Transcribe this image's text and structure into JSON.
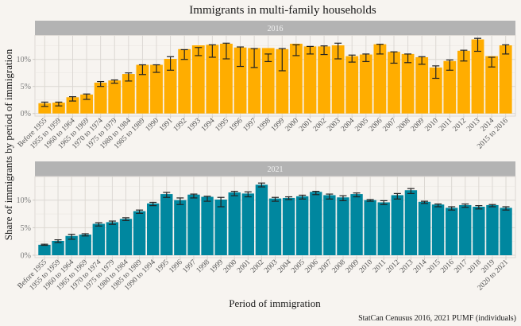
{
  "chart_data": {
    "type": "bar",
    "title": "Immigrants in multi-family households",
    "xlabel": "Period of immigration",
    "ylabel": "Share of immigrants by period of immigration",
    "caption": "StatCan Cenusus 2016, 2021 PUMF (individuals)",
    "grid": true,
    "legend": "none",
    "yticks": [
      "0%",
      "5%",
      "10%"
    ],
    "ytick_values": [
      0,
      5,
      10
    ],
    "panels": [
      {
        "strip": "2016",
        "color": "#ffad00",
        "ylim": [
          0,
          14
        ],
        "categories": [
          "Before 1955",
          "1955 to 1959",
          "1960 to 1964",
          "1965 to 1969",
          "1970 to 1974",
          "1975 to 1979",
          "1980 to 1984",
          "1985 to 1989",
          "1990",
          "1991",
          "1992",
          "1993",
          "1994",
          "1995",
          "1996",
          "1997",
          "1998",
          "1999",
          "2000",
          "2001",
          "2002",
          "2003",
          "2004",
          "2005",
          "2006",
          "2007",
          "2008",
          "2009",
          "2010",
          "2011",
          "2012",
          "2013",
          "2014",
          "2015 to 2016"
        ],
        "values": [
          1.9,
          2.0,
          3.0,
          3.5,
          5.7,
          6.1,
          7.3,
          9.0,
          9.0,
          10.1,
          11.9,
          12.6,
          12.7,
          12.9,
          12.2,
          12.1,
          12.1,
          11.9,
          12.9,
          12.4,
          12.4,
          12.6,
          10.6,
          10.9,
          12.8,
          11.4,
          11.0,
          10.4,
          8.5,
          9.7,
          11.6,
          13.7,
          10.6,
          12.6
        ],
        "err_low": [
          1.3,
          1.4,
          2.3,
          2.6,
          5.0,
          5.6,
          6.0,
          7.2,
          7.6,
          8.0,
          10.0,
          10.7,
          10.4,
          10.1,
          8.7,
          8.5,
          9.6,
          7.9,
          10.7,
          11.0,
          10.9,
          10.1,
          9.5,
          9.6,
          11.0,
          9.3,
          9.4,
          9.1,
          6.5,
          8.0,
          9.7,
          11.5,
          8.6,
          11.0
        ],
        "err_high": [
          2.1,
          2.1,
          3.1,
          3.6,
          5.9,
          6.2,
          7.5,
          9.0,
          9.0,
          10.5,
          11.8,
          12.2,
          12.7,
          13.0,
          12.3,
          12.0,
          11.0,
          12.0,
          12.7,
          12.4,
          12.5,
          13.0,
          10.8,
          11.0,
          12.8,
          11.4,
          11.0,
          10.5,
          8.8,
          9.9,
          11.7,
          13.9,
          10.4,
          12.7
        ]
      },
      {
        "strip": "2021",
        "color": "#00879f",
        "ylim": [
          0,
          13.6
        ],
        "categories": [
          "Before 1955",
          "1955 to 1959",
          "1960 to 1964",
          "1965 to 1969",
          "1970 to 1974",
          "1975 to 1979",
          "1980 to 1984",
          "1985 to 1989",
          "1990 to 1994",
          "1995",
          "1996",
          "1997",
          "1998",
          "1999",
          "2000",
          "2001",
          "2002",
          "2003",
          "2004",
          "2005",
          "2006",
          "2007",
          "2008",
          "2009",
          "2010",
          "2011",
          "2012",
          "2013",
          "2014",
          "2015",
          "2016",
          "2017",
          "2018",
          "2019",
          "2020 to 2021"
        ],
        "values": [
          1.9,
          2.6,
          3.5,
          3.75,
          5.7,
          6.0,
          6.6,
          8.0,
          9.4,
          11.1,
          10.0,
          11.0,
          10.6,
          10.1,
          11.4,
          11.2,
          12.8,
          10.3,
          10.4,
          10.7,
          11.5,
          10.9,
          10.5,
          11.1,
          10.0,
          9.6,
          10.9,
          11.8,
          9.7,
          9.2,
          8.6,
          9.1,
          8.8,
          9.1,
          8.6
        ],
        "err_low": [
          1.8,
          2.3,
          2.9,
          3.5,
          5.3,
          5.6,
          6.3,
          7.6,
          9.0,
          10.5,
          9.2,
          10.4,
          9.8,
          8.8,
          10.8,
          10.6,
          12.4,
          9.8,
          10.1,
          10.2,
          11.0,
          10.2,
          9.9,
          10.6,
          9.8,
          9.2,
          10.2,
          11.2,
          9.4,
          8.8,
          8.2,
          8.7,
          8.4,
          8.8,
          8.2
        ],
        "err_high": [
          2.0,
          2.8,
          3.8,
          3.9,
          5.9,
          6.2,
          6.8,
          8.2,
          9.6,
          11.4,
          10.4,
          11.1,
          10.7,
          10.5,
          11.6,
          11.5,
          13.1,
          10.5,
          10.6,
          10.9,
          11.6,
          11.1,
          10.8,
          11.3,
          10.1,
          9.9,
          11.2,
          12.1,
          9.8,
          9.3,
          8.8,
          9.3,
          9.0,
          9.2,
          8.8
        ]
      }
    ]
  }
}
